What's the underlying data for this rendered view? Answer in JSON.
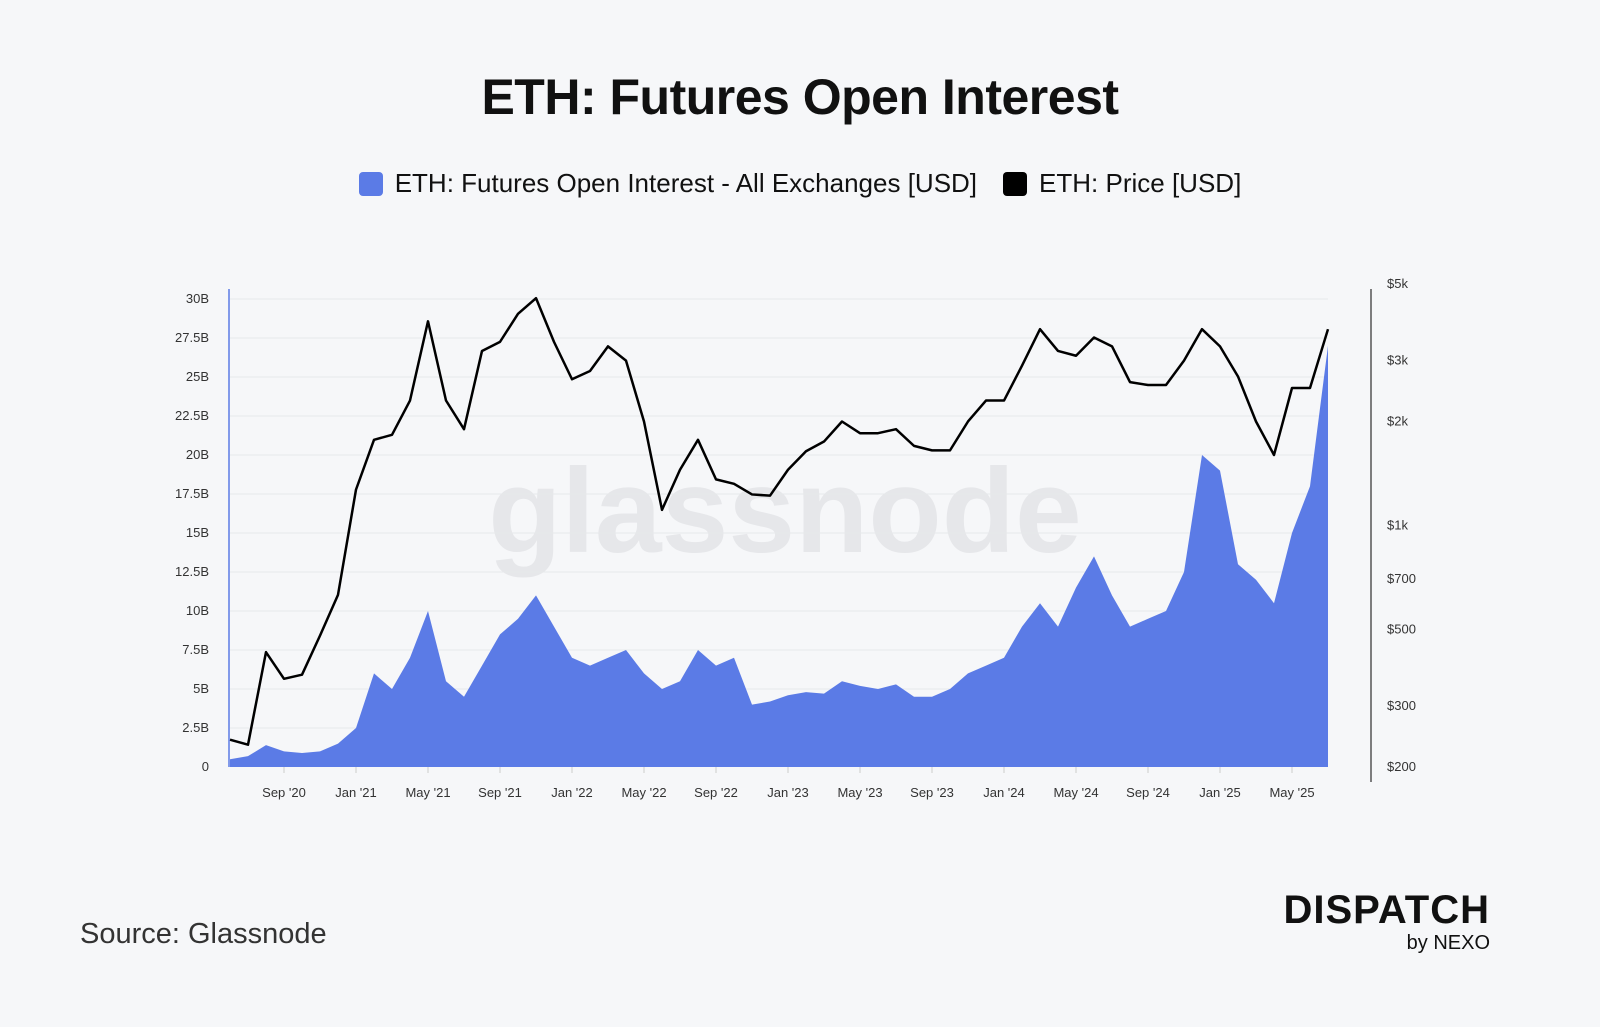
{
  "title": "ETH: Futures Open Interest",
  "legend": [
    {
      "label": "ETH: Futures Open Interest - All Exchanges [USD]",
      "color": "#5b7be6"
    },
    {
      "label": "ETH: Price [USD]",
      "color": "#000000"
    }
  ],
  "watermark": "glassnode",
  "source": "Source: Glassnode",
  "brand": {
    "name": "DISPATCH",
    "sub": "by NEXO"
  },
  "chart_data": {
    "type": "area",
    "title": "ETH: Futures Open Interest",
    "x_start": "2020-06",
    "x_step": "month",
    "x_ticks": [
      {
        "label": "Sep '20",
        "index": 3
      },
      {
        "label": "Jan '21",
        "index": 7
      },
      {
        "label": "May '21",
        "index": 11
      },
      {
        "label": "Sep '21",
        "index": 15
      },
      {
        "label": "Jan '22",
        "index": 19
      },
      {
        "label": "May '22",
        "index": 23
      },
      {
        "label": "Sep '22",
        "index": 27
      },
      {
        "label": "Jan '23",
        "index": 31
      },
      {
        "label": "May '23",
        "index": 35
      },
      {
        "label": "Sep '23",
        "index": 39
      },
      {
        "label": "Jan '24",
        "index": 43
      },
      {
        "label": "May '24",
        "index": 47
      },
      {
        "label": "Sep '24",
        "index": 51
      },
      {
        "label": "Jan '25",
        "index": 55
      },
      {
        "label": "May '25",
        "index": 59
      }
    ],
    "left_axis": {
      "ticks": [
        "0",
        "2.5B",
        "5B",
        "7.5B",
        "10B",
        "12.5B",
        "15B",
        "17.5B",
        "20B",
        "22.5B",
        "25B",
        "27.5B",
        "30B"
      ],
      "range": [
        0,
        30
      ],
      "unit": "B USD"
    },
    "right_axis": {
      "scale": "log",
      "range": [
        200,
        5000
      ],
      "ticks": [
        {
          "label": "$200",
          "value": 200
        },
        {
          "label": "$300",
          "value": 300
        },
        {
          "label": "$500",
          "value": 500
        },
        {
          "label": "$700",
          "value": 700
        },
        {
          "label": "$1k",
          "value": 1000
        },
        {
          "label": "$2k",
          "value": 2000
        },
        {
          "label": "$3k",
          "value": 3000
        },
        {
          "label": "$5k",
          "value": 5000
        }
      ]
    },
    "grid": true,
    "legend_position": "top",
    "series": [
      {
        "name": "ETH: Futures Open Interest - All Exchanges [USD]",
        "axis": "left",
        "type": "area",
        "color": "#5b7be6",
        "values": [
          0.5,
          0.7,
          1.4,
          1.0,
          0.9,
          1.0,
          1.5,
          2.5,
          6.0,
          5.0,
          7.0,
          10.0,
          5.5,
          4.5,
          6.5,
          8.5,
          9.5,
          11.0,
          9.0,
          7.0,
          6.5,
          7.0,
          7.5,
          6.0,
          5.0,
          5.5,
          7.5,
          6.5,
          7.0,
          4.0,
          4.2,
          4.6,
          4.8,
          4.7,
          5.5,
          5.2,
          5.0,
          5.3,
          4.5,
          4.5,
          5.0,
          6.0,
          6.5,
          7.0,
          9.0,
          10.5,
          9.0,
          11.5,
          13.5,
          11.0,
          9.0,
          9.5,
          10.0,
          12.5,
          20.0,
          19.0,
          13.0,
          12.0,
          10.5,
          15.0,
          18.0,
          27.0
        ]
      },
      {
        "name": "ETH: Price [USD]",
        "axis": "right",
        "type": "line",
        "color": "#000000",
        "values": [
          240,
          232,
          430,
          360,
          370,
          480,
          630,
          1270,
          1770,
          1830,
          2300,
          3900,
          2300,
          1900,
          3200,
          3400,
          4100,
          4550,
          3400,
          2650,
          2800,
          3300,
          3000,
          2000,
          1110,
          1450,
          1770,
          1360,
          1320,
          1230,
          1220,
          1450,
          1640,
          1750,
          2000,
          1850,
          1850,
          1900,
          1700,
          1650,
          1650,
          2000,
          2300,
          2300,
          2900,
          3700,
          3200,
          3100,
          3500,
          3300,
          2600,
          2550,
          2550,
          3000,
          3700,
          3300,
          2700,
          2000,
          1600,
          2500,
          2500,
          3700
        ]
      }
    ]
  }
}
